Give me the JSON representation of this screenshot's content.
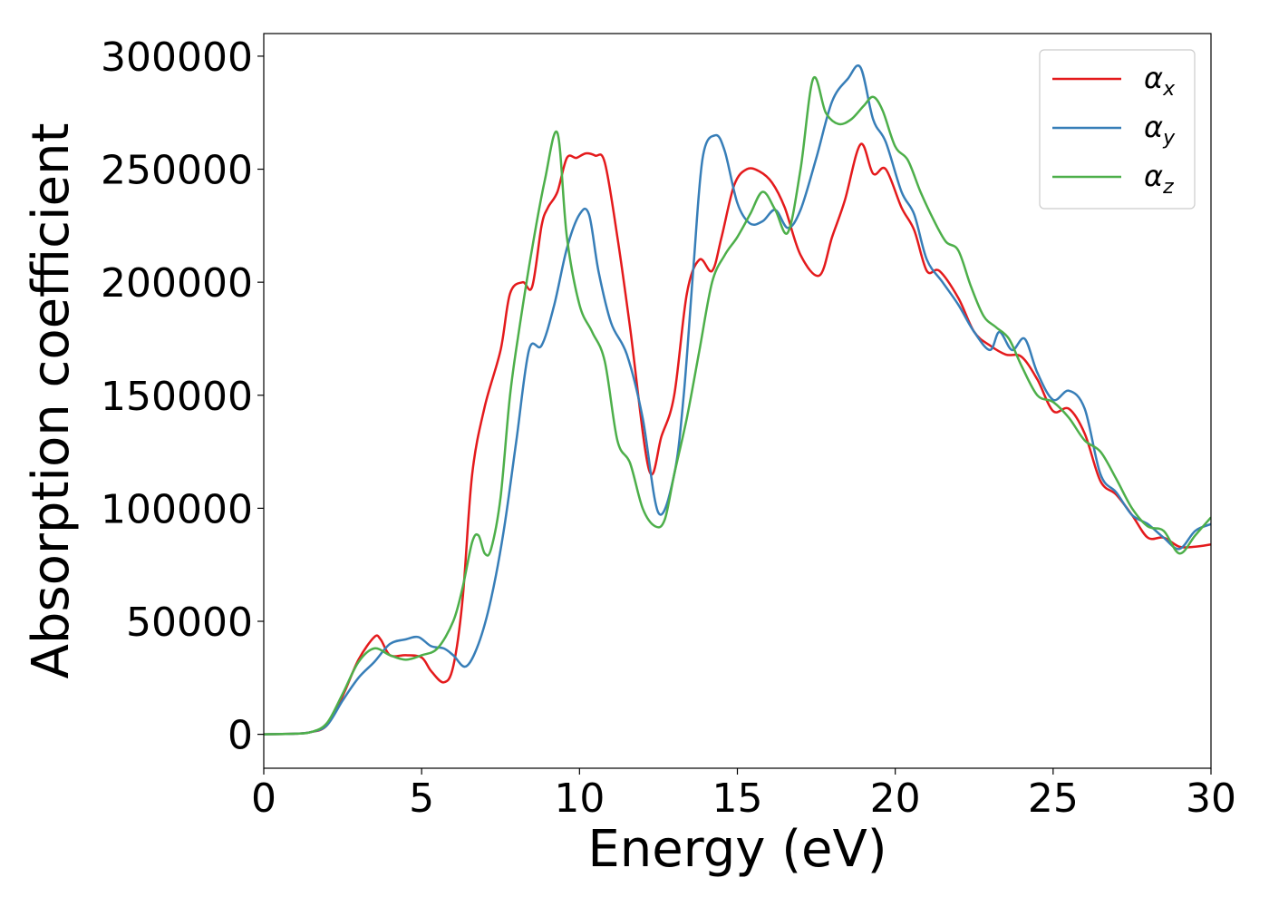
{
  "chart_data": {
    "type": "line",
    "xlabel": "Energy (eV)",
    "ylabel": "Absorption coefficient",
    "xlim": [
      0,
      30
    ],
    "ylim": [
      -15000,
      310000
    ],
    "xticks": [
      0,
      5,
      10,
      15,
      20,
      25,
      30
    ],
    "xtick_labels": [
      "0",
      "5",
      "10",
      "15",
      "20",
      "25",
      "30"
    ],
    "yticks": [
      0,
      50000,
      100000,
      150000,
      200000,
      250000,
      300000
    ],
    "ytick_labels": [
      "0",
      "50000",
      "100000",
      "150000",
      "200000",
      "250000",
      "300000"
    ],
    "grid": false,
    "legend_position": "top-right",
    "series": [
      {
        "name": "αx",
        "legend_base": "α",
        "legend_sub": "x",
        "color": "#e41a1c",
        "x": [
          0,
          1,
          1.5,
          2,
          2.5,
          3,
          3.5,
          3.7,
          4,
          4.5,
          5,
          5.3,
          5.7,
          6,
          6.3,
          6.6,
          7,
          7.5,
          7.8,
          8.2,
          8.5,
          8.8,
          9,
          9.3,
          9.6,
          9.9,
          10.2,
          10.5,
          10.8,
          11.2,
          11.6,
          12.2,
          12.6,
          13,
          13.4,
          13.8,
          14.2,
          14.5,
          14.9,
          15.3,
          15.7,
          16.1,
          16.5,
          17,
          17.6,
          18,
          18.4,
          18.9,
          19.3,
          19.7,
          20.2,
          20.6,
          21,
          21.4,
          22,
          22.5,
          23,
          23.5,
          24,
          24.5,
          25,
          25.5,
          26,
          26.5,
          27,
          27.5,
          28,
          28.5,
          29,
          29.5,
          30
        ],
        "y": [
          0,
          300,
          1000,
          4000,
          17000,
          33000,
          43000,
          42000,
          35000,
          35000,
          34000,
          28000,
          23000,
          30000,
          60000,
          115000,
          145000,
          170000,
          195000,
          200000,
          198000,
          225000,
          233000,
          240000,
          255000,
          255000,
          257000,
          256000,
          253000,
          220000,
          180000,
          117000,
          132000,
          150000,
          195000,
          210000,
          205000,
          220000,
          243000,
          250000,
          249000,
          244000,
          233000,
          212000,
          203000,
          220000,
          236000,
          261000,
          248000,
          250000,
          233000,
          223000,
          205000,
          205000,
          193000,
          178000,
          172000,
          168000,
          167000,
          157000,
          143000,
          144000,
          133000,
          112000,
          106000,
          97000,
          87000,
          87000,
          83000,
          83000,
          84000
        ]
      },
      {
        "name": "αy",
        "legend_base": "α",
        "legend_sub": "y",
        "color": "#377eb8",
        "x": [
          0,
          1,
          1.5,
          2,
          2.5,
          3,
          3.5,
          4,
          4.5,
          4.9,
          5.3,
          5.7,
          6,
          6.4,
          6.8,
          7.2,
          7.6,
          8,
          8.4,
          8.8,
          9.2,
          9.6,
          10,
          10.3,
          10.6,
          11,
          11.5,
          12,
          12.5,
          13,
          13.3,
          13.6,
          13.9,
          14.3,
          14.6,
          15,
          15.4,
          15.8,
          16.2,
          16.6,
          17,
          17.5,
          18,
          18.5,
          18.9,
          19.3,
          19.7,
          20.2,
          20.6,
          21,
          21.5,
          22,
          22.5,
          23,
          23.3,
          23.7,
          24.1,
          24.5,
          25,
          25.5,
          26,
          26.5,
          27,
          27.5,
          28,
          28.5,
          29,
          29.5,
          30
        ],
        "y": [
          0,
          300,
          1000,
          4000,
          15000,
          25000,
          32000,
          40000,
          42000,
          43000,
          39000,
          38000,
          35000,
          30000,
          40000,
          60000,
          90000,
          130000,
          170000,
          172000,
          190000,
          215000,
          230000,
          230000,
          205000,
          182000,
          168000,
          140000,
          98000,
          115000,
          150000,
          205000,
          255000,
          265000,
          258000,
          235000,
          226000,
          227000,
          232000,
          224000,
          232000,
          255000,
          280000,
          290000,
          295000,
          272000,
          262000,
          240000,
          230000,
          210000,
          200000,
          190000,
          178000,
          170000,
          178000,
          170000,
          175000,
          160000,
          148000,
          152000,
          144000,
          115000,
          107000,
          97000,
          93000,
          87000,
          82000,
          90000,
          93000
        ]
      },
      {
        "name": "αz",
        "legend_base": "α",
        "legend_sub": "z",
        "color": "#4daf4a",
        "x": [
          0,
          1,
          1.5,
          2,
          2.5,
          3,
          3.5,
          4,
          4.5,
          5,
          5.5,
          6,
          6.3,
          6.6,
          6.8,
          7,
          7.2,
          7.5,
          7.8,
          8.1,
          8.5,
          8.9,
          9.3,
          9.6,
          10,
          10.4,
          10.8,
          11.2,
          11.6,
          12,
          12.4,
          12.7,
          13,
          13.4,
          13.8,
          14.2,
          14.6,
          15,
          15.4,
          15.8,
          16.2,
          16.6,
          17,
          17.4,
          17.8,
          18.2,
          18.6,
          19,
          19.3,
          19.6,
          20,
          20.4,
          20.8,
          21.2,
          21.6,
          22,
          22.4,
          22.8,
          23.2,
          23.6,
          24,
          24.5,
          25,
          25.5,
          26,
          26.5,
          27,
          27.5,
          28,
          28.5,
          29,
          29.5,
          30
        ],
        "y": [
          0,
          300,
          1000,
          5000,
          18000,
          32000,
          38000,
          35000,
          33000,
          35000,
          38000,
          50000,
          65000,
          85000,
          88000,
          80000,
          82000,
          105000,
          150000,
          180000,
          215000,
          245000,
          266000,
          220000,
          190000,
          178000,
          165000,
          130000,
          120000,
          100000,
          92000,
          95000,
          115000,
          140000,
          170000,
          200000,
          212000,
          220000,
          230000,
          240000,
          232000,
          222000,
          250000,
          290000,
          275000,
          270000,
          272000,
          278000,
          282000,
          276000,
          260000,
          254000,
          240000,
          228000,
          218000,
          214000,
          198000,
          185000,
          180000,
          175000,
          163000,
          150000,
          147000,
          140000,
          130000,
          125000,
          113000,
          100000,
          92000,
          90000,
          80000,
          88000,
          96000
        ]
      }
    ]
  }
}
